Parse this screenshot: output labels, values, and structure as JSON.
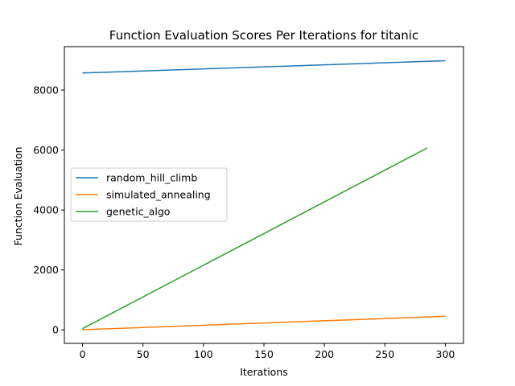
{
  "chart_data": {
    "type": "line",
    "title": "Function Evaluation Scores Per Iterations for titanic",
    "xlabel": "Iterations",
    "ylabel": "Function Evaluation",
    "xlim": [
      -15,
      315
    ],
    "ylim": [
      -450,
      9450
    ],
    "xticks": [
      0,
      50,
      100,
      150,
      200,
      250,
      300
    ],
    "yticks": [
      0,
      2000,
      4000,
      6000,
      8000
    ],
    "grid": false,
    "legend_position": "center-left",
    "series": [
      {
        "name": "random_hill_climb",
        "color": "#1f77b4",
        "x": [
          0,
          300
        ],
        "y": [
          8570,
          8980
        ]
      },
      {
        "name": "simulated_annealing",
        "color": "#ff7f0e",
        "x": [
          0,
          300
        ],
        "y": [
          5,
          455
        ]
      },
      {
        "name": "genetic_algo",
        "color": "#2ca02c",
        "x": [
          0,
          285
        ],
        "y": [
          40,
          6070
        ]
      }
    ]
  }
}
